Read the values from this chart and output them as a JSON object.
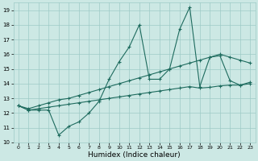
{
  "xlabel": "Humidex (Indice chaleur)",
  "bg_color": "#cce8e4",
  "grid_color": "#9ecbc6",
  "line_color": "#1e6b5e",
  "xlim": [
    -0.5,
    23.5
  ],
  "ylim": [
    10.0,
    19.5
  ],
  "yticks": [
    10,
    11,
    12,
    13,
    14,
    15,
    16,
    17,
    18,
    19
  ],
  "xticks": [
    0,
    1,
    2,
    3,
    4,
    5,
    6,
    7,
    8,
    9,
    10,
    11,
    12,
    13,
    14,
    15,
    16,
    17,
    18,
    19,
    20,
    21,
    22,
    23
  ],
  "main_y": [
    12.5,
    12.2,
    12.2,
    12.2,
    10.5,
    11.1,
    11.4,
    12.0,
    12.8,
    14.3,
    15.5,
    16.5,
    18.0,
    14.3,
    14.3,
    15.0,
    17.7,
    19.2,
    13.8,
    15.8,
    15.9,
    14.2,
    13.9,
    14.1
  ],
  "upper_y": [
    12.5,
    12.3,
    12.5,
    12.7,
    12.9,
    13.0,
    13.2,
    13.4,
    13.6,
    13.8,
    14.0,
    14.2,
    14.4,
    14.6,
    14.8,
    15.0,
    15.2,
    15.4,
    15.6,
    15.8,
    16.0,
    15.8,
    15.6,
    15.4
  ],
  "lower_y": [
    12.5,
    12.2,
    12.3,
    12.4,
    12.5,
    12.6,
    12.7,
    12.8,
    12.9,
    13.0,
    13.1,
    13.2,
    13.3,
    13.4,
    13.5,
    13.6,
    13.7,
    13.8,
    13.7,
    13.75,
    13.85,
    13.9,
    13.9,
    14.0
  ]
}
